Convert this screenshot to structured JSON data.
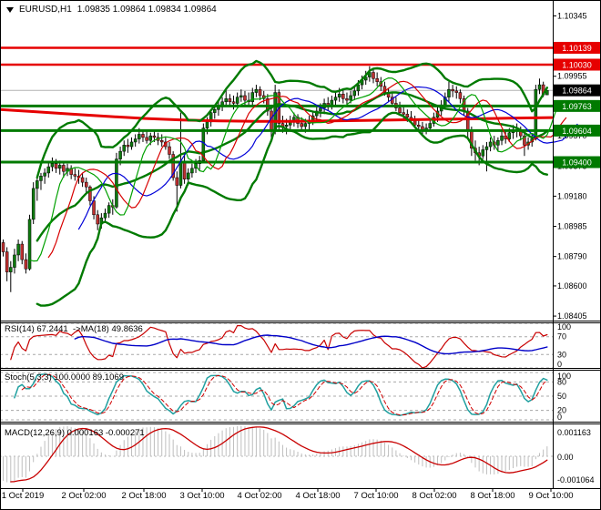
{
  "window": {
    "symbol_period": "EURUSD,H1",
    "ohlc": "1.09835 1.09864 1.09834 1.09864"
  },
  "panels": {
    "rsi": {
      "label": "RSI(14) 67.2441  ->MA(18) 49.8636",
      "params": {
        "period": 14,
        "ma_period": 18
      },
      "current": {
        "rsi": 67.2441,
        "ma": 49.8636
      },
      "levels": [
        100,
        70,
        30,
        0
      ],
      "colors": {
        "rsi": "#C80000",
        "ma": "#0000C8"
      }
    },
    "stoch": {
      "label": "Stoch(5,3,3) 100.0000 89.1069",
      "params": {
        "k": 5,
        "d": 3,
        "slowing": 3
      },
      "current": {
        "k": 100.0,
        "d": 89.1069
      },
      "levels": [
        100,
        80,
        50,
        20,
        0
      ],
      "colors": {
        "k": "#20A0A0",
        "d": "#D00000"
      }
    },
    "macd": {
      "label": "MACD(12,26,9) 0.000163 -0.000271",
      "params": {
        "fast": 12,
        "slow": 26,
        "signal": 9
      },
      "current": {
        "macd": 0.000163,
        "signal": -0.000271
      },
      "axis_labels": [
        "0.001163",
        "0.00",
        "-0.001064"
      ],
      "colors": {
        "hist": "#BEBEBE",
        "signal": "#C80000"
      }
    }
  },
  "main": {
    "axis_ticks": [
      1.10345,
      1.09955,
      1.0957,
      1.09375,
      1.0918,
      1.08985,
      1.0879,
      1.086,
      1.08405
    ],
    "badges": [
      {
        "text": "1.10139",
        "price": 1.10139,
        "bg": "#E60000"
      },
      {
        "text": "1.10030",
        "price": 1.1003,
        "bg": "#E60000"
      },
      {
        "text": "1.09864",
        "price": 1.09864,
        "bg": "#000000"
      },
      {
        "text": "1.09763",
        "price": 1.09763,
        "bg": "#007A00"
      },
      {
        "text": "1.09604",
        "price": 1.09604,
        "bg": "#007A00"
      },
      {
        "text": "1.09400",
        "price": 1.094,
        "bg": "#007A00"
      }
    ],
    "hlines": [
      {
        "price": 1.10139,
        "color": "#E60000",
        "w": 2.5,
        "role": "resistance"
      },
      {
        "price": 1.1003,
        "color": "#E60000",
        "w": 2.5,
        "role": "resistance"
      },
      {
        "price": 1.09763,
        "color": "#007A00",
        "w": 3,
        "role": "support"
      },
      {
        "price": 1.09604,
        "color": "#007A00",
        "w": 3,
        "role": "support"
      },
      {
        "price": 1.094,
        "color": "#007A00",
        "w": 3,
        "role": "support"
      }
    ],
    "current_price": 1.09864,
    "price_line_color": "#B4B4B4",
    "candle_colors": {
      "bull": "#0E7A0E",
      "bear": "#C03030",
      "outline": "#000000"
    },
    "ma200": {
      "color": "#E60000",
      "width": 3,
      "points": [
        [
          0,
          1.0974
        ],
        [
          40,
          1.09725
        ],
        [
          80,
          1.0971
        ],
        [
          120,
          1.09695
        ],
        [
          160,
          1.09682
        ],
        [
          200,
          1.09672
        ],
        [
          240,
          1.09667
        ],
        [
          280,
          1.09664
        ],
        [
          320,
          1.09664
        ],
        [
          360,
          1.09666
        ],
        [
          400,
          1.0967
        ],
        [
          440,
          1.09673
        ],
        [
          480,
          1.09677
        ],
        [
          520,
          1.0968
        ],
        [
          560,
          1.09684
        ],
        [
          606,
          1.09688
        ]
      ]
    },
    "bollinger": {
      "period": 20,
      "deviation": 2,
      "color": "#007A00",
      "width": 2.4
    },
    "alligator": {
      "jaw": {
        "period": 13,
        "shift": 8,
        "color": "#0000D8"
      },
      "teeth": {
        "period": 8,
        "shift": 5,
        "color": "#D80000"
      },
      "lips": {
        "period": 5,
        "shift": 3,
        "color": "#00A000"
      }
    }
  },
  "x_axis": {
    "labels": [
      "1 Oct 2019",
      "2 Oct 02:00",
      "2 Oct 18:00",
      "3 Oct 10:00",
      "4 Oct 02:00",
      "4 Oct 18:00",
      "7 Oct 10:00",
      "8 Oct 02:00",
      "8 Oct 18:00",
      "9 Oct 10:00"
    ],
    "centers": [
      25,
      92,
      158,
      222,
      285,
      349,
      413,
      477,
      541,
      605
    ]
  },
  "chart_data": {
    "type": "candlestick",
    "symbol": "EURUSD",
    "timeframe": "H1",
    "title": "EURUSD,H1 1.09835 1.09864 1.09834 1.09864",
    "current_bar": {
      "open": 1.09835,
      "high": 1.09864,
      "low": 1.09834,
      "close": 1.09864
    },
    "price_axis": {
      "top": 1.10442,
      "bottom": 1.08376
    },
    "candles": [
      [
        1.0888,
        1.089,
        1.0879,
        1.0882
      ],
      [
        1.0882,
        1.0885,
        1.0863,
        1.0869
      ],
      [
        1.0869,
        1.0876,
        1.0856,
        1.0872
      ],
      [
        1.0872,
        1.0884,
        1.0868,
        1.088
      ],
      [
        1.088,
        1.089,
        1.0876,
        1.0887
      ],
      [
        1.0887,
        1.0889,
        1.0874,
        1.0877
      ],
      [
        1.0877,
        1.0881,
        1.0868,
        1.0871
      ],
      [
        1.0871,
        1.0906,
        1.087,
        1.0903
      ],
      [
        1.0903,
        1.0927,
        1.09,
        1.0923
      ],
      [
        1.0923,
        1.093,
        1.0915,
        1.0928
      ],
      [
        1.0928,
        1.0933,
        1.0922,
        1.0931
      ],
      [
        1.0931,
        1.0936,
        1.0926,
        1.0933
      ],
      [
        1.0933,
        1.094,
        1.093,
        1.0937
      ],
      [
        1.0937,
        1.0943,
        1.0934,
        1.0939
      ],
      [
        1.0939,
        1.0942,
        1.0933,
        1.0936
      ],
      [
        1.0936,
        1.0941,
        1.0932,
        1.0938
      ],
      [
        1.0938,
        1.094,
        1.093,
        1.0934
      ],
      [
        1.0934,
        1.0939,
        1.0931,
        1.0936
      ],
      [
        1.0936,
        1.0938,
        1.0929,
        1.0932
      ],
      [
        1.0932,
        1.0936,
        1.0928,
        1.0931
      ],
      [
        1.0931,
        1.0935,
        1.0926,
        1.093
      ],
      [
        1.093,
        1.0933,
        1.0924,
        1.0927
      ],
      [
        1.0927,
        1.093,
        1.092,
        1.0924
      ],
      [
        1.0924,
        1.0925,
        1.0912,
        1.0915
      ],
      [
        1.0915,
        1.0918,
        1.0903,
        1.0906
      ],
      [
        1.0906,
        1.0909,
        1.0896,
        1.09
      ],
      [
        1.09,
        1.0907,
        1.0897,
        1.0904
      ],
      [
        1.0904,
        1.091,
        1.0901,
        1.0907
      ],
      [
        1.0907,
        1.0914,
        1.0904,
        1.0912
      ],
      [
        1.0912,
        1.0916,
        1.0906,
        1.0911
      ],
      [
        1.0911,
        1.0946,
        1.091,
        1.0942
      ],
      [
        1.0942,
        1.095,
        1.0938,
        1.0947
      ],
      [
        1.0947,
        1.0954,
        1.0944,
        1.0951
      ],
      [
        1.0951,
        1.0955,
        1.0946,
        1.095
      ],
      [
        1.095,
        1.0956,
        1.0948,
        1.0953
      ],
      [
        1.0953,
        1.0958,
        1.095,
        1.0955
      ],
      [
        1.0955,
        1.0962,
        1.0952,
        1.0958
      ],
      [
        1.0958,
        1.0961,
        1.0953,
        1.0956
      ],
      [
        1.0956,
        1.096,
        1.0952,
        1.0954
      ],
      [
        1.0954,
        1.0959,
        1.0951,
        1.0957
      ],
      [
        1.0957,
        1.0961,
        1.0953,
        1.0956
      ],
      [
        1.0956,
        1.0959,
        1.0951,
        1.0954
      ],
      [
        1.0954,
        1.0958,
        1.095,
        1.0953
      ],
      [
        1.0953,
        1.0956,
        1.0948,
        1.095
      ],
      [
        1.095,
        1.0953,
        1.0942,
        1.0945
      ],
      [
        1.0945,
        1.0947,
        1.0928,
        1.093
      ],
      [
        1.093,
        1.0934,
        1.0908,
        1.0925
      ],
      [
        1.0925,
        1.0972,
        1.0923,
        1.094
      ],
      [
        1.094,
        1.0945,
        1.0926,
        1.0929
      ],
      [
        1.0929,
        1.0936,
        1.0925,
        1.0933
      ],
      [
        1.0933,
        1.0939,
        1.093,
        1.0936
      ],
      [
        1.0936,
        1.0942,
        1.0933,
        1.0939
      ],
      [
        1.0939,
        1.0944,
        1.0935,
        1.0941
      ],
      [
        1.0941,
        1.0965,
        1.094,
        1.0962
      ],
      [
        1.0962,
        1.0969,
        1.0958,
        1.0966
      ],
      [
        1.0966,
        1.0974,
        1.0963,
        1.0972
      ],
      [
        1.0972,
        1.0977,
        1.0968,
        1.0974
      ],
      [
        1.0974,
        1.0979,
        1.097,
        1.0976
      ],
      [
        1.0976,
        1.0982,
        1.0973,
        1.0979
      ],
      [
        1.0979,
        1.0987,
        1.0976,
        1.0981
      ],
      [
        1.0981,
        1.0984,
        1.0976,
        1.0979
      ],
      [
        1.0979,
        1.0983,
        1.0974,
        1.0978
      ],
      [
        1.0978,
        1.0985,
        1.0976,
        1.0982
      ],
      [
        1.0982,
        1.0987,
        1.0979,
        1.0983
      ],
      [
        1.0983,
        1.0986,
        1.0977,
        1.098
      ],
      [
        1.098,
        1.0985,
        1.0976,
        1.0979
      ],
      [
        1.0979,
        1.0988,
        1.0977,
        1.0985
      ],
      [
        1.0985,
        1.099,
        1.0982,
        1.0987
      ],
      [
        1.0987,
        1.0989,
        1.098,
        1.0983
      ],
      [
        1.0983,
        1.0986,
        1.0978,
        1.0981
      ],
      [
        1.0981,
        1.0984,
        1.097,
        1.0973
      ],
      [
        1.0973,
        1.0976,
        1.0956,
        1.096
      ],
      [
        1.096,
        1.099,
        1.0958,
        1.0985
      ],
      [
        1.0985,
        1.0987,
        1.0961,
        1.0965
      ],
      [
        1.0965,
        1.097,
        1.0959,
        1.0963
      ],
      [
        1.0963,
        1.0968,
        1.0958,
        1.0964
      ],
      [
        1.0964,
        1.097,
        1.0961,
        1.0967
      ],
      [
        1.0967,
        1.0972,
        1.0963,
        1.0969
      ],
      [
        1.0969,
        1.0971,
        1.0962,
        1.0965
      ],
      [
        1.0965,
        1.0969,
        1.096,
        1.0963
      ],
      [
        1.0963,
        1.0968,
        1.0959,
        1.0965
      ],
      [
        1.0965,
        1.097,
        1.0961,
        1.0967
      ],
      [
        1.0967,
        1.0973,
        1.0964,
        1.097
      ],
      [
        1.097,
        1.0976,
        1.0967,
        1.0973
      ],
      [
        1.0973,
        1.0978,
        1.0969,
        1.0975
      ],
      [
        1.0975,
        1.0981,
        1.0971,
        1.0978
      ],
      [
        1.0978,
        1.0982,
        1.0973,
        1.0976
      ],
      [
        1.0976,
        1.0983,
        1.0974,
        1.098
      ],
      [
        1.098,
        1.0985,
        1.0976,
        1.0982
      ],
      [
        1.0982,
        1.0988,
        1.0979,
        1.0984
      ],
      [
        1.0984,
        1.0987,
        1.0978,
        1.0981
      ],
      [
        1.0981,
        1.0985,
        1.0977,
        1.098
      ],
      [
        1.098,
        1.0986,
        1.0978,
        1.0983
      ],
      [
        1.0983,
        1.0989,
        1.098,
        1.0986
      ],
      [
        1.0986,
        1.0993,
        1.0983,
        1.099
      ],
      [
        1.099,
        1.0996,
        1.0987,
        1.0993
      ],
      [
        1.0993,
        1.0999,
        1.099,
        1.0995
      ],
      [
        1.0995,
        1.1002,
        1.0992,
        1.0998
      ],
      [
        1.0998,
        1.1,
        1.0991,
        1.0994
      ],
      [
        1.0994,
        1.0998,
        1.0989,
        1.0992
      ],
      [
        1.0992,
        1.0995,
        1.0986,
        1.0989
      ],
      [
        1.0989,
        1.0992,
        1.0983,
        1.0985
      ],
      [
        1.0985,
        1.0988,
        1.0979,
        1.0982
      ],
      [
        1.0982,
        1.0985,
        1.0976,
        1.0978
      ],
      [
        1.0978,
        1.0982,
        1.0973,
        1.0975
      ],
      [
        1.0975,
        1.0979,
        1.097,
        1.0972
      ],
      [
        1.0972,
        1.0976,
        1.0968,
        1.0971
      ],
      [
        1.0971,
        1.0974,
        1.0966,
        1.0969
      ],
      [
        1.0969,
        1.0973,
        1.0965,
        1.0968
      ],
      [
        1.0968,
        1.097,
        1.0962,
        1.0964
      ],
      [
        1.0964,
        1.0968,
        1.096,
        1.0963
      ],
      [
        1.0963,
        1.0966,
        1.0958,
        1.0961
      ],
      [
        1.0961,
        1.0965,
        1.0958,
        1.0962
      ],
      [
        1.0962,
        1.0968,
        1.096,
        1.0965
      ],
      [
        1.0965,
        1.0972,
        1.0963,
        1.0969
      ],
      [
        1.0969,
        1.0976,
        1.0966,
        1.0973
      ],
      [
        1.0973,
        1.098,
        1.097,
        1.0977
      ],
      [
        1.0977,
        1.0985,
        1.0974,
        1.0982
      ],
      [
        1.0982,
        1.0992,
        1.0979,
        1.0987
      ],
      [
        1.0987,
        1.099,
        1.0982,
        1.0986
      ],
      [
        1.0986,
        1.0989,
        1.0981,
        1.0985
      ],
      [
        1.0985,
        1.0987,
        1.0978,
        1.0981
      ],
      [
        1.0981,
        1.0983,
        1.097,
        1.0973
      ],
      [
        1.0973,
        1.0975,
        1.0956,
        1.096
      ],
      [
        1.096,
        1.0963,
        1.0944,
        1.0949
      ],
      [
        1.0949,
        1.0954,
        1.0941,
        1.0946
      ],
      [
        1.0946,
        1.095,
        1.0938,
        1.0944
      ],
      [
        1.0944,
        1.0951,
        1.0942,
        1.0948
      ],
      [
        1.0948,
        1.0953,
        1.0934,
        1.095
      ],
      [
        1.095,
        1.0956,
        1.0947,
        1.0953
      ],
      [
        1.0953,
        1.0957,
        1.0948,
        1.0951
      ],
      [
        1.0951,
        1.0956,
        1.0947,
        1.0954
      ],
      [
        1.0954,
        1.096,
        1.0951,
        1.0957
      ],
      [
        1.0957,
        1.0961,
        1.0952,
        1.0955
      ],
      [
        1.0955,
        1.0962,
        1.0953,
        1.0959
      ],
      [
        1.0959,
        1.0964,
        1.0955,
        1.0961
      ],
      [
        1.0961,
        1.0965,
        1.0956,
        1.096
      ],
      [
        1.096,
        1.0963,
        1.0954,
        1.0957
      ],
      [
        1.0957,
        1.0959,
        1.0944,
        1.0951
      ],
      [
        1.0951,
        1.0956,
        1.0948,
        1.0953
      ],
      [
        1.0953,
        1.0958,
        1.095,
        1.0955
      ],
      [
        1.0955,
        1.099,
        1.0954,
        1.0987
      ],
      [
        1.0987,
        1.0994,
        1.0984,
        1.099
      ],
      [
        1.099,
        1.0992,
        1.0982,
        1.09835
      ],
      [
        1.09835,
        1.09864,
        1.09834,
        1.09864
      ]
    ]
  }
}
